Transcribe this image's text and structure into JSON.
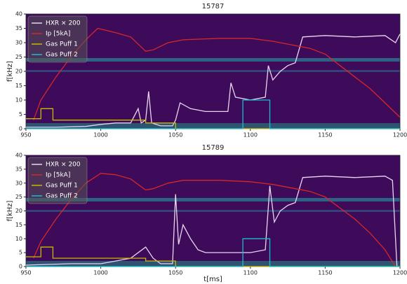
{
  "chart_data": [
    {
      "type": "line",
      "title": "15787",
      "ylabel": "f[kHz]",
      "xlim": [
        950,
        1200
      ],
      "ylim": [
        0,
        40
      ],
      "xticks": [
        950,
        1000,
        1050,
        1100,
        1150,
        1200
      ],
      "yticks": [
        0,
        5,
        10,
        15,
        20,
        25,
        30,
        35,
        40
      ],
      "legend": "upper left",
      "series": [
        {
          "name": "HXR × 200",
          "color": "#e8d6f0",
          "x": [
            950,
            970,
            990,
            1000,
            1010,
            1020,
            1025,
            1027,
            1030,
            1032,
            1034,
            1040,
            1048,
            1050,
            1053,
            1060,
            1070,
            1085,
            1087,
            1090,
            1100,
            1110,
            1112,
            1115,
            1120,
            1125,
            1130,
            1135,
            1150,
            1170,
            1190,
            1197,
            1200
          ],
          "values": [
            0.5,
            0.5,
            0.8,
            1.5,
            2,
            2,
            7,
            2,
            3,
            13,
            2,
            1,
            1,
            3,
            9,
            7,
            6,
            6,
            16,
            11,
            10,
            11,
            22,
            17,
            20,
            22,
            23,
            32,
            32.5,
            32,
            32.5,
            30,
            33
          ]
        },
        {
          "name": "Ip [5kA]",
          "color": "#d62728",
          "x": [
            955,
            960,
            970,
            980,
            990,
            998,
            1010,
            1020,
            1030,
            1035,
            1045,
            1055,
            1080,
            1100,
            1115,
            1130,
            1140,
            1150,
            1160,
            1170,
            1180,
            1190,
            1200
          ],
          "values": [
            3,
            10,
            18,
            25,
            31,
            35,
            33.5,
            32,
            27,
            27.5,
            30,
            31,
            31.5,
            31.5,
            30.5,
            29,
            28,
            26,
            22,
            18,
            14,
            9,
            4
          ]
        },
        {
          "name": "Gas Puff 1",
          "color": "#c9b800",
          "x": [
            950,
            960,
            960,
            968,
            968,
            1030,
            1030,
            1050,
            1050,
            1200
          ],
          "values": [
            3.5,
            3.5,
            7,
            7,
            3,
            3,
            2,
            2,
            0,
            0
          ]
        },
        {
          "name": "Gas Puff 2",
          "color": "#17becf",
          "x": [
            950,
            1095,
            1095,
            1113,
            1113,
            1200
          ],
          "values": [
            0,
            0,
            10,
            10,
            0,
            0
          ]
        }
      ]
    },
    {
      "type": "line",
      "title": "15789",
      "ylabel": "f[kHz]",
      "xlabel": "t[ms]",
      "xlim": [
        950,
        1200
      ],
      "ylim": [
        0,
        40
      ],
      "xticks": [
        950,
        1000,
        1050,
        1100,
        1150,
        1200
      ],
      "yticks": [
        0,
        5,
        10,
        15,
        20,
        25,
        30,
        35,
        40
      ],
      "legend": "upper left",
      "series": [
        {
          "name": "HXR × 200",
          "color": "#e8d6f0",
          "x": [
            950,
            980,
            1000,
            1010,
            1020,
            1030,
            1035,
            1040,
            1048,
            1050,
            1052,
            1055,
            1060,
            1065,
            1070,
            1090,
            1100,
            1110,
            1113,
            1116,
            1120,
            1125,
            1130,
            1135,
            1150,
            1170,
            1190,
            1195,
            1198
          ],
          "values": [
            0.5,
            1,
            1,
            2,
            3,
            7,
            3,
            1,
            1,
            26,
            8,
            15,
            10,
            6,
            5,
            5,
            5,
            6,
            29,
            16,
            20,
            22,
            23,
            32,
            32.5,
            32,
            32.5,
            31,
            0
          ]
        },
        {
          "name": "Ip [5kA]",
          "color": "#d62728",
          "x": [
            955,
            960,
            970,
            980,
            990,
            1000,
            1010,
            1020,
            1030,
            1035,
            1045,
            1055,
            1080,
            1100,
            1115,
            1130,
            1140,
            1150,
            1160,
            1170,
            1180,
            1190,
            1197
          ],
          "values": [
            3,
            9,
            17,
            24,
            30,
            33.5,
            33,
            31.5,
            27.5,
            28,
            30,
            31,
            31,
            30.5,
            29.5,
            28,
            27,
            25,
            21,
            17,
            12,
            6,
            0
          ]
        },
        {
          "name": "Gas Puff 1",
          "color": "#c9b800",
          "x": [
            950,
            960,
            960,
            968,
            968,
            1030,
            1030,
            1050,
            1050,
            1200
          ],
          "values": [
            3.5,
            3.5,
            7,
            7,
            3,
            3,
            2,
            2,
            0,
            0
          ]
        },
        {
          "name": "Gas Puff 2",
          "color": "#17becf",
          "x": [
            950,
            1095,
            1095,
            1113,
            1113,
            1200
          ],
          "values": [
            0,
            0,
            10,
            10,
            0,
            0
          ]
        }
      ]
    }
  ]
}
